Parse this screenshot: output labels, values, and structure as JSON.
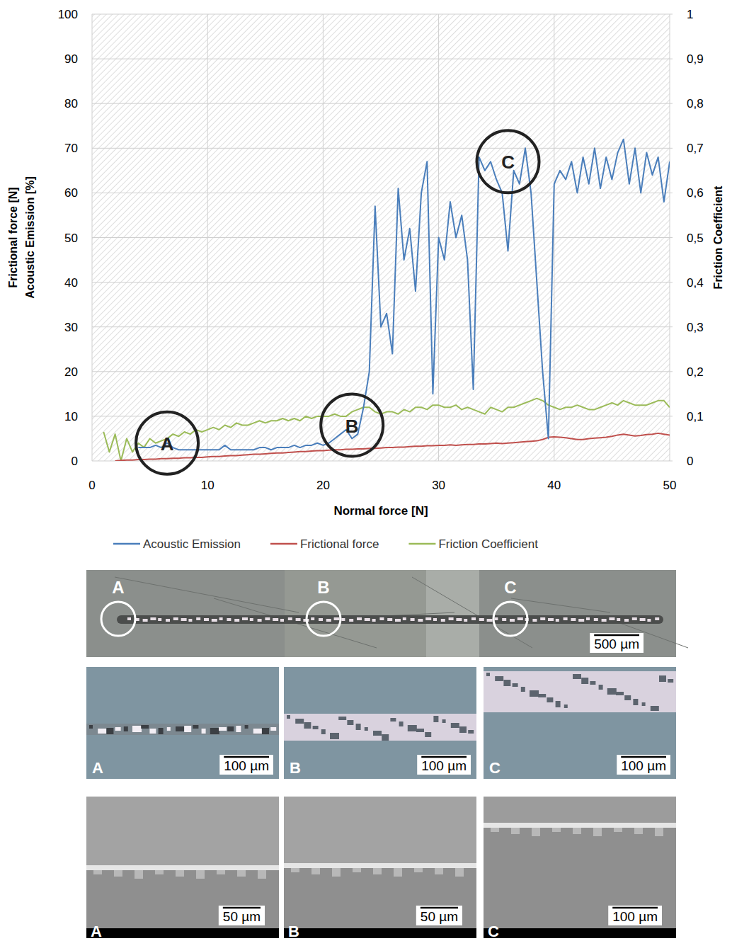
{
  "chart_data": {
    "type": "line",
    "xlabel": "Normal force [N]",
    "ylabel": [
      "Frictional force [N]",
      "Acoustic Emission [%]"
    ],
    "y2label": "Friction Coefficient",
    "xlim": [
      0,
      50
    ],
    "xticks": [
      0,
      10,
      20,
      30,
      40,
      50
    ],
    "ylim": [
      0,
      100
    ],
    "yticks": [
      0,
      10,
      20,
      30,
      40,
      50,
      60,
      70,
      80,
      90,
      100
    ],
    "y2lim": [
      0,
      1
    ],
    "y2ticks": [
      0,
      {
        "value": 0.1,
        "label": "0,1"
      },
      {
        "value": 0.2,
        "label": "0,2"
      },
      {
        "value": 0.3,
        "label": "0,3"
      },
      {
        "value": 0.4,
        "label": "0,4"
      },
      {
        "value": 0.5,
        "label": "0,5"
      },
      {
        "value": 0.6,
        "label": "0,6"
      },
      {
        "value": 0.7,
        "label": "0,7"
      },
      {
        "value": 0.8,
        "label": "0,8"
      },
      {
        "value": 0.9,
        "label": "0,9"
      },
      1
    ],
    "grid": true,
    "legend": "bottom",
    "x": [
      1,
      1.5,
      2,
      2.5,
      3,
      3.5,
      4,
      4.5,
      5,
      5.5,
      6,
      6.5,
      7,
      7.5,
      8,
      8.5,
      9,
      9.5,
      10,
      10.5,
      11,
      11.5,
      12,
      12.5,
      13,
      13.5,
      14,
      14.5,
      15,
      15.5,
      16,
      16.5,
      17,
      17.5,
      18,
      18.5,
      19,
      19.5,
      20,
      20.5,
      21,
      21.5,
      22,
      22.5,
      23,
      23.5,
      24,
      24.5,
      25,
      25.5,
      26,
      26.5,
      27,
      27.5,
      28,
      28.5,
      29,
      29.5,
      30,
      30.5,
      31,
      31.5,
      32,
      32.5,
      33,
      33.5,
      34,
      34.5,
      35,
      35.5,
      36,
      36.5,
      37,
      37.5,
      38,
      38.5,
      39,
      39.5,
      40,
      40.5,
      41,
      41.5,
      42,
      42.5,
      43,
      43.5,
      44,
      44.5,
      45,
      45.5,
      46,
      46.5,
      47,
      47.5,
      48,
      48.5,
      49,
      49.5,
      50
    ],
    "series": [
      {
        "name": "Acoustic Emission",
        "color": "#4a7ebb",
        "values": [
          null,
          null,
          null,
          null,
          null,
          null,
          3,
          3,
          3,
          3.5,
          3,
          4,
          3,
          2.5,
          2.5,
          2.5,
          2.5,
          2.5,
          2.5,
          2.5,
          2.5,
          3.5,
          2.5,
          2.5,
          2.5,
          2.5,
          2.5,
          3,
          3,
          2.5,
          3,
          3,
          3,
          3.5,
          3,
          3.5,
          3.5,
          4,
          3.5,
          4,
          5,
          6,
          7,
          5,
          6,
          12,
          20,
          57,
          30,
          33,
          24,
          61,
          45,
          52,
          38,
          60,
          67,
          15,
          50,
          45,
          58,
          50,
          55,
          45,
          16,
          68,
          65,
          67,
          63,
          60,
          47,
          65,
          62,
          70,
          60,
          40,
          20,
          5,
          62,
          65,
          63,
          67,
          60,
          68,
          62,
          70,
          61,
          68,
          63,
          69,
          72,
          62,
          70,
          60,
          69,
          64,
          68,
          58,
          67
        ]
      },
      {
        "name": "Frictional force",
        "color": "#c0504d",
        "values": [
          null,
          null,
          0,
          0.1,
          0.2,
          0.2,
          0.3,
          0.3,
          0.4,
          0.4,
          0.5,
          0.5,
          0.6,
          0.6,
          0.7,
          0.7,
          0.8,
          0.8,
          0.9,
          1.0,
          1.0,
          1.1,
          1.2,
          1.2,
          1.3,
          1.4,
          1.5,
          1.5,
          1.6,
          1.7,
          1.8,
          1.8,
          1.9,
          2.0,
          2.1,
          2.1,
          2.2,
          2.3,
          2.3,
          2.4,
          2.5,
          2.5,
          2.6,
          2.6,
          2.7,
          2.7,
          2.8,
          2.8,
          2.9,
          3.0,
          3.0,
          3.1,
          3.1,
          3.2,
          3.3,
          3.3,
          3.4,
          3.4,
          3.5,
          3.5,
          3.6,
          3.5,
          3.6,
          3.7,
          3.7,
          3.8,
          3.8,
          3.9,
          4.0,
          3.9,
          4.0,
          4.1,
          4.2,
          4.3,
          4.4,
          4.5,
          4.8,
          5.3,
          5.4,
          5.3,
          5.2,
          5.0,
          4.8,
          4.8,
          5.0,
          5.1,
          5.2,
          5.3,
          5.5,
          5.8,
          6.0,
          5.8,
          5.6,
          5.7,
          5.9,
          6.0,
          6.2,
          6.0,
          5.8
        ]
      },
      {
        "name": "Friction Coefficient",
        "color": "#9bbb59",
        "axis": "y2",
        "values": [
          0.065,
          0.02,
          0.06,
          0,
          0.05,
          0.02,
          0.04,
          0.03,
          0.05,
          0.04,
          0.045,
          0.05,
          0.06,
          0.055,
          0.065,
          0.06,
          0.07,
          0.065,
          0.07,
          0.075,
          0.07,
          0.08,
          0.075,
          0.085,
          0.08,
          0.08,
          0.085,
          0.09,
          0.085,
          0.09,
          0.09,
          0.095,
          0.09,
          0.095,
          0.09,
          0.1,
          0.095,
          0.1,
          0.1,
          0.1,
          0.105,
          0.1,
          0.1,
          0.11,
          0.115,
          0.12,
          0.12,
          0.11,
          0.105,
          0.11,
          0.11,
          0.105,
          0.115,
          0.11,
          0.12,
          0.12,
          0.115,
          0.125,
          0.125,
          0.12,
          0.12,
          0.125,
          0.115,
          0.12,
          0.115,
          0.11,
          0.105,
          0.12,
          0.115,
          0.11,
          0.12,
          0.12,
          0.125,
          0.13,
          0.135,
          0.14,
          0.135,
          0.125,
          0.12,
          0.115,
          0.12,
          0.12,
          0.125,
          0.12,
          0.115,
          0.115,
          0.12,
          0.125,
          0.13,
          0.125,
          0.135,
          0.13,
          0.125,
          0.125,
          0.125,
          0.13,
          0.135,
          0.135,
          0.12
        ]
      }
    ],
    "annotations": [
      {
        "label": "A",
        "x": 6.5,
        "y": 4
      },
      {
        "label": "B",
        "x": 22.5,
        "y": 8
      },
      {
        "label": "C",
        "x": 36,
        "y": 67
      }
    ]
  },
  "micrographs": {
    "overview": {
      "markers": [
        "A",
        "B",
        "C"
      ],
      "scale_bar": "500 µm"
    },
    "optical": [
      {
        "label": "A",
        "scale_bar": "100 µm"
      },
      {
        "label": "B",
        "scale_bar": "100 µm"
      },
      {
        "label": "C",
        "scale_bar": "100 µm"
      }
    ],
    "sem": [
      {
        "label": "A",
        "scale_bar": "50 µm"
      },
      {
        "label": "B",
        "scale_bar": "50 µm"
      },
      {
        "label": "C",
        "scale_bar": "100 µm"
      }
    ]
  }
}
